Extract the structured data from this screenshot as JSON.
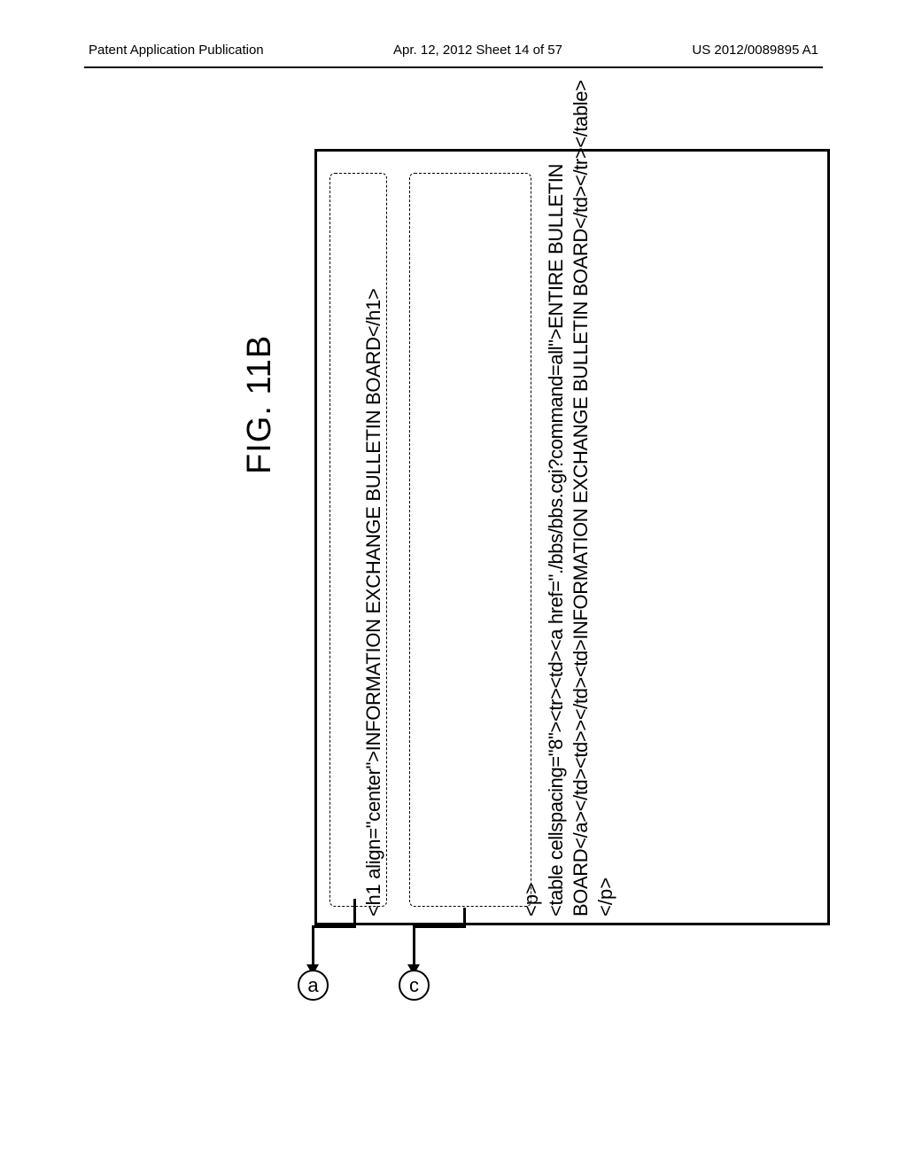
{
  "header": {
    "left": "Patent Application Publication",
    "middle": "Apr. 12, 2012  Sheet 14 of 57",
    "right": "US 2012/0089895 A1"
  },
  "figure": {
    "label": "FIG. 11B",
    "outer_border_color": "#000000",
    "dashed_border_color": "#000000",
    "background_color": "#ffffff",
    "font_family": "Arial",
    "code_fontsize": 22,
    "label_fontsize": 38
  },
  "callouts": {
    "a": {
      "label": "a",
      "target": "box-a"
    },
    "c": {
      "label": "c",
      "target": "box-c"
    }
  },
  "code_box_a": {
    "lines": [
      "<h1 align=\"center\">INFORMATION EXCHANGE BULLETIN BOARD</h1>"
    ]
  },
  "code_box_c": {
    "lines": [
      "<p>",
      "<table cellspacing=\"8\"><tr><td><a href=\"./bbs/bbs.cgi?command=all\">ENTIRE BULLETIN",
      "BOARD</a></td><td>></td><td>INFORMATION EXCHANGE BULLETIN BOARD</td></tr></table>",
      "</p>"
    ]
  }
}
